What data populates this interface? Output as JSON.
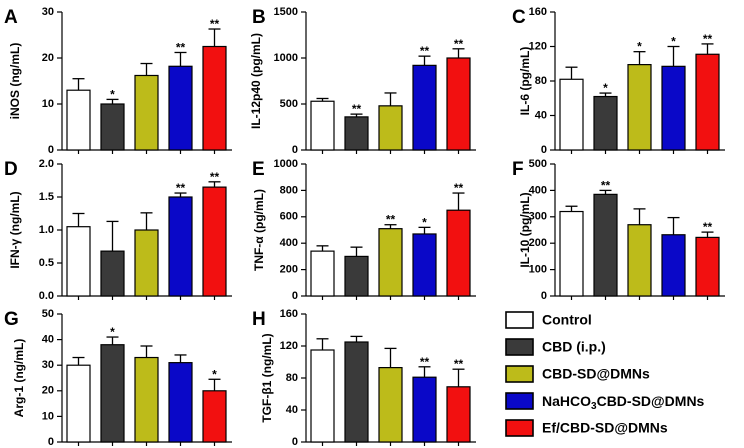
{
  "colors": {
    "Control": "#ffffff",
    "CBD (i.p.)": "#3a3a3a",
    "CBD-SD@DMNs": "#bdbb1a",
    "NaHCO3/CBD-SD@DMNs": "#0a08c8",
    "Ef/CBD-SD@DMNs": "#f21010"
  },
  "legend": {
    "items": [
      {
        "label": "Control",
        "key": "Control"
      },
      {
        "label": "CBD (i.p.)",
        "key": "CBD (i.p.)"
      },
      {
        "label": "CBD-SD@DMNs",
        "key": "CBD-SD@DMNs"
      },
      {
        "label": "NaHCO3/CBD-SD@DMNs",
        "key": "NaHCO3/CBD-SD@DMNs"
      },
      {
        "label": "Ef/CBD-SD@DMNs",
        "key": "Ef/CBD-SD@DMNs"
      }
    ]
  },
  "chart_data": [
    {
      "type": "bar",
      "panel": "A",
      "ylabel": "iNOS (ng/mL)",
      "ylim": [
        0,
        30
      ],
      "yticks": [
        "0",
        "10",
        "20",
        "30"
      ],
      "categories": [
        "Control",
        "CBD (i.p.)",
        "CBD-SD@DMNs",
        "NaHCO3/CBD-SD@DMNs",
        "Ef/CBD-SD@DMNs"
      ],
      "values": [
        13,
        10,
        16.2,
        18.2,
        22.5
      ],
      "errors": [
        2.5,
        1,
        2.6,
        3,
        3.8
      ],
      "significance": [
        "",
        "*",
        "",
        "**",
        "**"
      ]
    },
    {
      "type": "bar",
      "panel": "B",
      "ylabel": "IL-12p40 (pg/mL)",
      "ylim": [
        0,
        1500
      ],
      "yticks": [
        "0",
        "500",
        "1000",
        "1500"
      ],
      "categories": [
        "Control",
        "CBD (i.p.)",
        "CBD-SD@DMNs",
        "NaHCO3/CBD-SD@DMNs",
        "Ef/CBD-SD@DMNs"
      ],
      "values": [
        530,
        360,
        480,
        920,
        1000
      ],
      "errors": [
        30,
        30,
        140,
        100,
        100
      ],
      "significance": [
        "",
        "**",
        "",
        "**",
        "**"
      ]
    },
    {
      "type": "bar",
      "panel": "C",
      "ylabel": "IL-6 (pg/mL)",
      "ylim": [
        0,
        160
      ],
      "yticks": [
        "0",
        "40",
        "80",
        "120",
        "160"
      ],
      "categories": [
        "Control",
        "CBD (i.p.)",
        "CBD-SD@DMNs",
        "NaHCO3/CBD-SD@DMNs",
        "Ef/CBD-SD@DMNs"
      ],
      "values": [
        82,
        62,
        99,
        97,
        111
      ],
      "errors": [
        14,
        4,
        15,
        23,
        12
      ],
      "significance": [
        "",
        "*",
        "*",
        "*",
        "**"
      ]
    },
    {
      "type": "bar",
      "panel": "D",
      "ylabel": "IFN-γ (ng/mL)",
      "ylim": [
        0,
        2.0
      ],
      "yticks": [
        "0.0",
        "0.5",
        "1.0",
        "1.5",
        "2.0"
      ],
      "categories": [
        "Control",
        "CBD (i.p.)",
        "CBD-SD@DMNs",
        "NaHCO3/CBD-SD@DMNs",
        "Ef/CBD-SD@DMNs"
      ],
      "values": [
        1.05,
        0.68,
        1.0,
        1.5,
        1.65
      ],
      "errors": [
        0.2,
        0.45,
        0.26,
        0.06,
        0.08
      ],
      "significance": [
        "",
        "",
        "",
        "**",
        "**"
      ]
    },
    {
      "type": "bar",
      "panel": "E",
      "ylabel": "TNF-α (pg/mL)",
      "ylim": [
        0,
        1000
      ],
      "yticks": [
        "0",
        "200",
        "400",
        "600",
        "800",
        "1000"
      ],
      "categories": [
        "Control",
        "CBD (i.p.)",
        "CBD-SD@DMNs",
        "NaHCO3/CBD-SD@DMNs",
        "Ef/CBD-SD@DMNs"
      ],
      "values": [
        340,
        300,
        510,
        470,
        650
      ],
      "errors": [
        40,
        70,
        30,
        50,
        130
      ],
      "significance": [
        "",
        "",
        "**",
        "*",
        "**"
      ]
    },
    {
      "type": "bar",
      "panel": "F",
      "ylabel": "IL-10 (pg/mL)",
      "ylim": [
        0,
        500
      ],
      "yticks": [
        "0",
        "100",
        "200",
        "300",
        "400",
        "500"
      ],
      "categories": [
        "Control",
        "CBD (i.p.)",
        "CBD-SD@DMNs",
        "NaHCO3/CBD-SD@DMNs",
        "Ef/CBD-SD@DMNs"
      ],
      "values": [
        320,
        385,
        270,
        232,
        222
      ],
      "errors": [
        20,
        15,
        60,
        65,
        20
      ],
      "significance": [
        "",
        "**",
        "",
        "",
        "**"
      ]
    },
    {
      "type": "bar",
      "panel": "G",
      "ylabel": "Arg-1 (ng/mL)",
      "ylim": [
        0,
        50
      ],
      "yticks": [
        "0",
        "10",
        "20",
        "30",
        "40",
        "50"
      ],
      "categories": [
        "Control",
        "CBD (i.p.)",
        "CBD-SD@DMNs",
        "NaHCO3/CBD-SD@DMNs",
        "Ef/CBD-SD@DMNs"
      ],
      "values": [
        30,
        38,
        33,
        31,
        20
      ],
      "errors": [
        3,
        3,
        4.5,
        3,
        4.5
      ],
      "significance": [
        "",
        "*",
        "",
        "",
        "*"
      ]
    },
    {
      "type": "bar",
      "panel": "H",
      "ylabel": "TGF-β1 (ng/mL)",
      "ylim": [
        0,
        160
      ],
      "yticks": [
        "0",
        "40",
        "80",
        "120",
        "160"
      ],
      "categories": [
        "Control",
        "CBD (i.p.)",
        "CBD-SD@DMNs",
        "NaHCO3/CBD-SD@DMNs",
        "Ef/CBD-SD@DMNs"
      ],
      "values": [
        115,
        125,
        93,
        81,
        69
      ],
      "errors": [
        14,
        7,
        24,
        13,
        22
      ],
      "significance": [
        "",
        "",
        "",
        "**",
        "**"
      ]
    }
  ]
}
